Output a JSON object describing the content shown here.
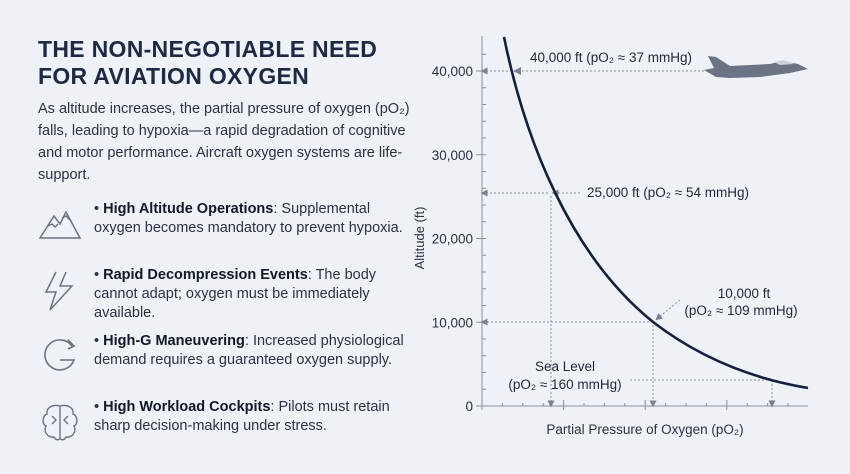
{
  "title": "The Non-Negotiable Need for Aviation Oxygen",
  "intro": "As altitude increases, the partial pressure of oxygen (pO₂) falls, leading to hypoxia—a rapid degradation of cognitive and motor performance. Aircraft oxygen systems are life-support.",
  "bullets": [
    {
      "icon": "mountain-icon",
      "head": "High Altitude Operations",
      "body": ": Supplemental oxygen becomes mandatory to prevent hypoxia."
    },
    {
      "icon": "lightning-icon",
      "head": "Rapid Decompression Events",
      "body": ": The body cannot adapt; oxygen must be immediately available."
    },
    {
      "icon": "g-force-icon",
      "head": "High-G Maneuvering",
      "body": ": Increased physiological demand requires a guaranteed oxygen supply."
    },
    {
      "icon": "brain-icon",
      "head": "High Workload Cockpits",
      "body": ": Pilots must retain sharp decision-making under stress."
    }
  ],
  "chart_data": {
    "type": "line",
    "xlabel": "Partial Pressure of Oxygen (pO₂)",
    "ylabel": "Altitude (ft)",
    "ylim": [
      0,
      40000
    ],
    "yticks": [
      "0",
      "10,000",
      "20,000",
      "30,000",
      "40,000"
    ],
    "annotations": [
      {
        "altitude_ft": 40000,
        "po2_mmHg": 37,
        "label": "40,000 ft (pO₂ ≈ 37 mmHg)"
      },
      {
        "altitude_ft": 25000,
        "po2_mmHg": 54,
        "label": "25,000 ft (pO₂ ≈ 54 mmHg)"
      },
      {
        "altitude_ft": 10000,
        "po2_mmHg": 109,
        "label_line1": "10,000 ft",
        "label_line2": "(pO₂ ≈ 109 mmHg)"
      },
      {
        "altitude_ft": 0,
        "po2_mmHg": 160,
        "label_line1": "Sea Level",
        "label_line2": "(pO₂ ≈ 160 mmHg)"
      }
    ],
    "curve_color": "#14213d",
    "grid": false
  }
}
